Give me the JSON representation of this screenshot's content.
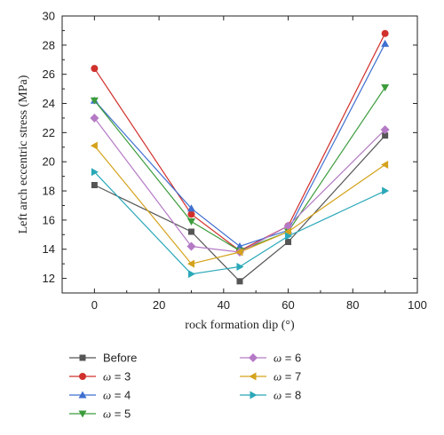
{
  "chart_data": {
    "type": "line",
    "title": "",
    "xlabel": "rock formation dip (°)",
    "ylabel": "Left arch eccentric stress (MPa)",
    "xlim": [
      -10,
      100
    ],
    "ylim": [
      11,
      30
    ],
    "xticks": [
      0,
      20,
      40,
      60,
      80,
      100
    ],
    "yticks": [
      12,
      14,
      16,
      18,
      20,
      22,
      24,
      26,
      28,
      30
    ],
    "grid": false,
    "legend_position": "bottom",
    "series": [
      {
        "name": "Before",
        "marker": "square",
        "color": "#555555",
        "points": [
          [
            0,
            18.4
          ],
          [
            30,
            15.2
          ],
          [
            45,
            11.8
          ],
          [
            60,
            14.5
          ],
          [
            90,
            21.8
          ]
        ]
      },
      {
        "name": "ω = 3",
        "marker": "circle",
        "color": "#d0312d",
        "points": [
          [
            0,
            26.4
          ],
          [
            30,
            16.4
          ],
          [
            45,
            13.9
          ],
          [
            60,
            15.6
          ],
          [
            90,
            28.8
          ]
        ]
      },
      {
        "name": "ω = 4",
        "marker": "triangle-up",
        "color": "#3f6fd0",
        "points": [
          [
            0,
            24.2
          ],
          [
            30,
            16.8
          ],
          [
            45,
            14.2
          ],
          [
            60,
            15.3
          ],
          [
            90,
            28.1
          ]
        ]
      },
      {
        "name": "ω = 5",
        "marker": "triangle-down",
        "color": "#3c9c3c",
        "points": [
          [
            0,
            24.2
          ],
          [
            30,
            15.9
          ],
          [
            45,
            13.9
          ],
          [
            60,
            15.2
          ],
          [
            90,
            25.1
          ]
        ]
      },
      {
        "name": "ω = 6",
        "marker": "diamond",
        "color": "#b57ac6",
        "points": [
          [
            0,
            23.0
          ],
          [
            30,
            14.2
          ],
          [
            45,
            13.8
          ],
          [
            60,
            15.6
          ],
          [
            90,
            22.2
          ]
        ]
      },
      {
        "name": "ω = 7",
        "marker": "triangle-left",
        "color": "#d4a21b",
        "points": [
          [
            0,
            21.1
          ],
          [
            30,
            13.0
          ],
          [
            45,
            13.8
          ],
          [
            60,
            15.2
          ],
          [
            90,
            19.8
          ]
        ]
      },
      {
        "name": "ω = 8",
        "marker": "triangle-right",
        "color": "#2aa8b8",
        "points": [
          [
            0,
            19.3
          ],
          [
            30,
            12.3
          ],
          [
            45,
            12.8
          ],
          [
            60,
            14.9
          ],
          [
            90,
            18.0
          ]
        ]
      }
    ]
  }
}
